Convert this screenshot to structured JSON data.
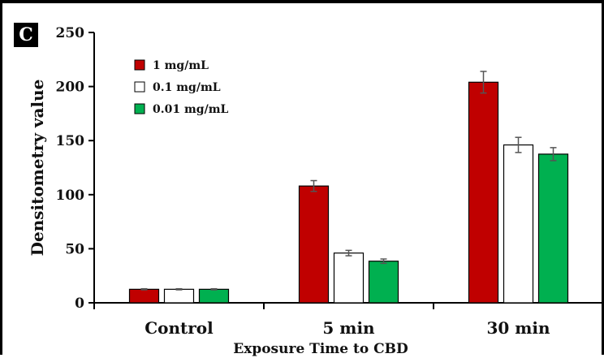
{
  "panel_label": "C",
  "chart_data": {
    "type": "bar",
    "categories": [
      "Control",
      "5 min",
      "30 min"
    ],
    "series": [
      {
        "name": "1 mg/mL",
        "color": "#c00000",
        "values": [
          12.5,
          108,
          204
        ],
        "errors": [
          0.5,
          5,
          10
        ]
      },
      {
        "name": "0.1 mg/mL",
        "color": "#ffffff",
        "values": [
          12.5,
          46,
          146
        ],
        "errors": [
          0.5,
          2.5,
          7
        ]
      },
      {
        "name": "0.01 mg/mL",
        "color": "#00b050",
        "values": [
          12.5,
          38.5,
          137.5
        ],
        "errors": [
          0.5,
          2,
          6
        ]
      }
    ],
    "xlabel": "Exposure Time to CBD",
    "ylabel": "Densitometry value",
    "ylim": [
      0,
      250
    ],
    "yticks": [
      0,
      50,
      100,
      150,
      200,
      250
    ],
    "grid": false,
    "legend_position": "top-left"
  }
}
